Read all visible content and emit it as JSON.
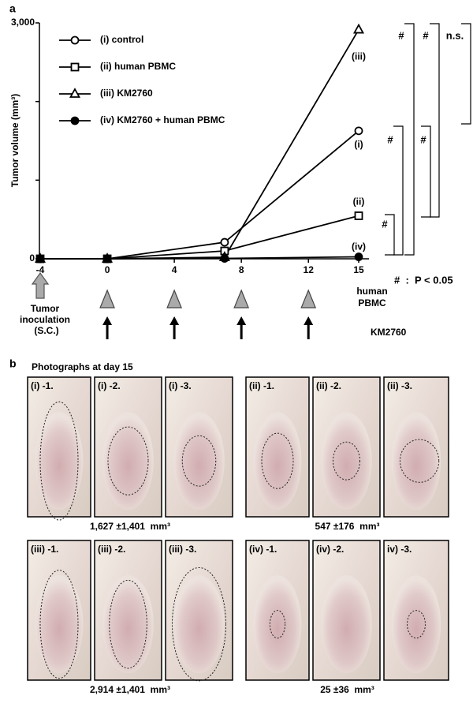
{
  "panel_a": "a",
  "panel_b": "b",
  "chart_data": {
    "type": "line",
    "y_label": "Tumor volume (mm³)",
    "x": [
      -4,
      0,
      7,
      15
    ],
    "xlim": [
      -4,
      15
    ],
    "xticks": [
      -4,
      0,
      4,
      8,
      12,
      15
    ],
    "ylim": [
      0,
      3000
    ],
    "yticks": [
      0,
      {
        "value": 3000,
        "label": "3,000"
      }
    ],
    "yminor_ticks": [
      1000,
      2000
    ],
    "legend": "upper left",
    "series": [
      {
        "name": "(i) control",
        "color": "#000000",
        "marker": "circle",
        "filled": false,
        "end_label": "(i)",
        "values": [
          0,
          0,
          210,
          1627
        ]
      },
      {
        "name": "(ii) human PBMC",
        "color": "#000000",
        "marker": "square",
        "filled": false,
        "end_label": "(ii)",
        "values": [
          0,
          0,
          100,
          547
        ]
      },
      {
        "name": "(iii) KM2760",
        "color": "#000000",
        "marker": "triangle",
        "filled": false,
        "end_label": "(iii)",
        "values": [
          0,
          0,
          20,
          2914
        ]
      },
      {
        "name": "(iv) KM2760 + human PBMC",
        "color": "#000000",
        "marker": "circle",
        "filled": true,
        "end_label": "(iv)",
        "values": [
          0,
          0,
          5,
          25
        ]
      }
    ],
    "schedule": {
      "inoculation": {
        "lines": [
          "Tumor",
          "inoculation",
          "(S.C.)"
        ],
        "day": -4
      },
      "pbmc": {
        "lines": [
          "human",
          "PBMC"
        ],
        "days": [
          0,
          4,
          8,
          12
        ]
      },
      "km2760": {
        "lines": [
          "KM2760"
        ],
        "days": [
          0,
          4,
          8,
          12
        ]
      }
    },
    "significance": {
      "brackets": [
        "#",
        "#",
        "n.s.",
        "#",
        "#",
        "#"
      ],
      "legend": "#  :  P < 0.05"
    }
  },
  "photos": {
    "title": "Photographs at day 15",
    "groups": [
      {
        "labels": [
          "(i) -1.",
          "(i) -2.",
          "(i) -3."
        ],
        "caption": "1,627 ±1,401  mm³"
      },
      {
        "labels": [
          "(ii) -1.",
          "(ii) -2.",
          "(ii) -3."
        ],
        "caption": "547 ±176  mm³"
      },
      {
        "labels": [
          "(iii) -1.",
          "(iii) -2.",
          "(iii) -3."
        ],
        "caption": "2,914 ±1,401  mm³"
      },
      {
        "labels": [
          "(iv) -1.",
          "(iv) -2.",
          "iv) -3."
        ],
        "caption": "25 ±36  mm³"
      }
    ]
  }
}
